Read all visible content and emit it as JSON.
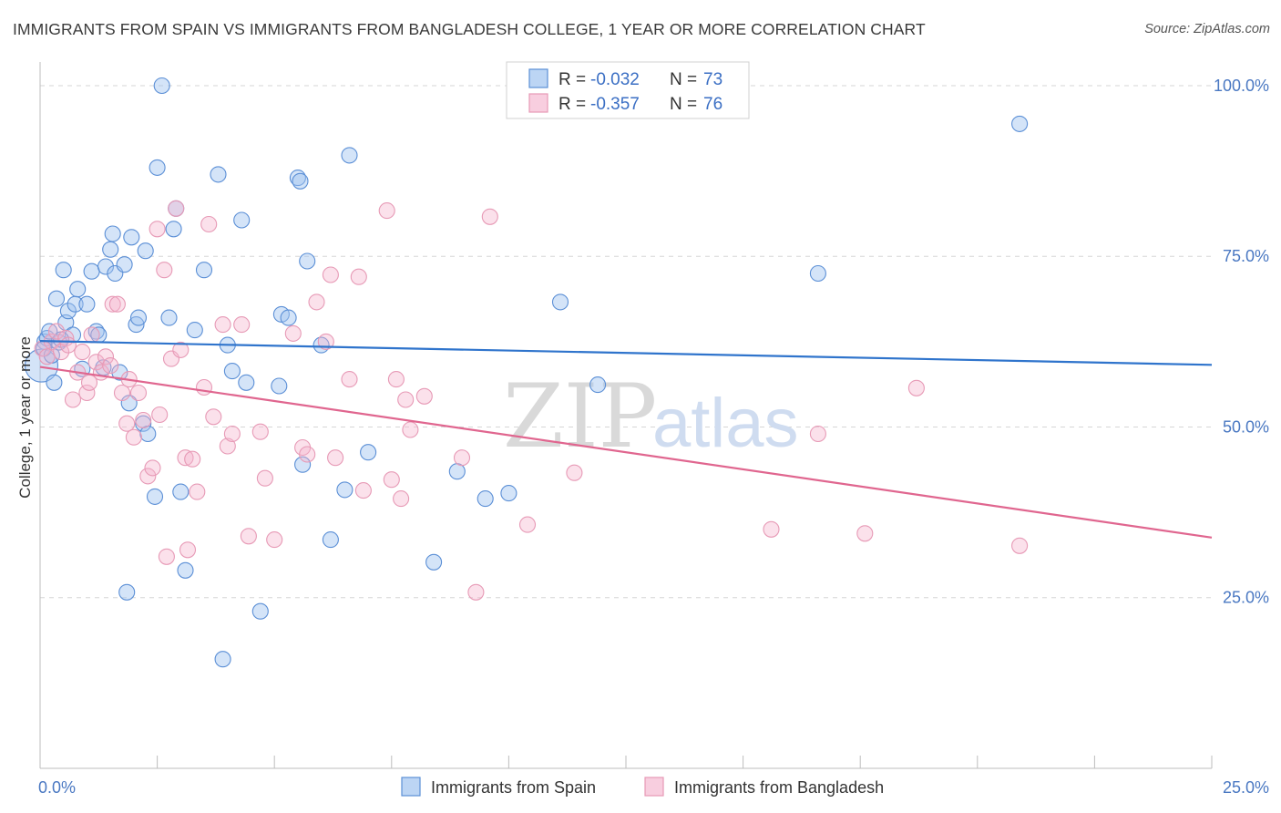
{
  "title": "IMMIGRANTS FROM SPAIN VS IMMIGRANTS FROM BANGLADESH COLLEGE, 1 YEAR OR MORE CORRELATION CHART",
  "source": "Source: ZipAtlas.com",
  "watermark": {
    "zip": "ZIP",
    "atlas": "atlas"
  },
  "colors": {
    "spain": "#5b8fd6",
    "spain_fill": "rgba(160,195,240,0.45)",
    "spain_line": "#2f74cc",
    "bangladesh": "#e79ab6",
    "bangladesh_fill": "rgba(245,180,205,0.40)",
    "bangladesh_line": "#e0668f",
    "tick_text": "#4a78c2"
  },
  "legend": {
    "rows": [
      {
        "r_label": "R =",
        "r_value": "-0.032",
        "n_label": "N =",
        "n_value": "73"
      },
      {
        "r_label": "R =",
        "r_value": "-0.357",
        "n_label": "N =",
        "n_value": "76"
      }
    ]
  },
  "chart_data": {
    "type": "scatter",
    "title": "IMMIGRANTS FROM SPAIN VS IMMIGRANTS FROM BANGLADESH COLLEGE, 1 YEAR OR MORE CORRELATION CHART",
    "xlabel": "",
    "ylabel": "College, 1 year or more",
    "xlim": [
      0,
      25
    ],
    "ylim": [
      0,
      102
    ],
    "x_tick_labels": [
      "0.0%",
      "25.0%"
    ],
    "y_ticks": [
      25,
      50,
      75,
      100
    ],
    "y_tick_labels": [
      "25.0%",
      "50.0%",
      "75.0%",
      "100.0%"
    ],
    "grid": "horizontal dashed",
    "legend_position": "top-center",
    "series": [
      {
        "name": "Immigrants from Spain",
        "r": -0.032,
        "n": 73,
        "trend": {
          "x0": 0,
          "y0": 62.6,
          "x1": 25,
          "y1": 59.1
        },
        "points": [
          [
            0.03,
            59.0
          ],
          [
            0.1,
            62.5
          ],
          [
            0.15,
            63.0
          ],
          [
            0.2,
            64.0
          ],
          [
            0.3,
            56.5
          ],
          [
            0.35,
            68.8
          ],
          [
            0.4,
            62.4
          ],
          [
            0.5,
            73.0
          ],
          [
            0.55,
            65.3
          ],
          [
            0.6,
            67.0
          ],
          [
            0.7,
            63.5
          ],
          [
            0.75,
            68.0
          ],
          [
            0.8,
            70.2
          ],
          [
            0.9,
            58.5
          ],
          [
            1.0,
            68.0
          ],
          [
            1.1,
            72.8
          ],
          [
            1.2,
            64.0
          ],
          [
            1.25,
            63.5
          ],
          [
            1.4,
            73.5
          ],
          [
            1.5,
            76.0
          ],
          [
            1.55,
            78.3
          ],
          [
            1.6,
            72.5
          ],
          [
            1.7,
            58.0
          ],
          [
            1.8,
            73.8
          ],
          [
            1.85,
            25.8
          ],
          [
            1.9,
            53.5
          ],
          [
            1.95,
            77.8
          ],
          [
            2.05,
            65.0
          ],
          [
            2.1,
            66.0
          ],
          [
            2.2,
            50.5
          ],
          [
            2.25,
            75.8
          ],
          [
            2.3,
            49.0
          ],
          [
            2.45,
            39.8
          ],
          [
            2.5,
            88.0
          ],
          [
            2.6,
            100.0
          ],
          [
            2.75,
            66.0
          ],
          [
            2.85,
            79.0
          ],
          [
            2.9,
            82.0
          ],
          [
            3.0,
            40.5
          ],
          [
            3.1,
            29.0
          ],
          [
            3.3,
            64.2
          ],
          [
            3.5,
            73.0
          ],
          [
            3.8,
            87.0
          ],
          [
            3.9,
            16.0
          ],
          [
            4.1,
            58.2
          ],
          [
            4.3,
            80.3
          ],
          [
            4.4,
            56.5
          ],
          [
            4.7,
            23.0
          ],
          [
            5.1,
            56.0
          ],
          [
            5.15,
            66.5
          ],
          [
            5.3,
            66.0
          ],
          [
            5.5,
            86.5
          ],
          [
            5.55,
            86.0
          ],
          [
            5.6,
            44.5
          ],
          [
            5.7,
            74.3
          ],
          [
            6.0,
            62.0
          ],
          [
            6.2,
            33.5
          ],
          [
            6.5,
            40.8
          ],
          [
            6.6,
            89.8
          ],
          [
            7.0,
            46.3
          ],
          [
            8.4,
            30.2
          ],
          [
            8.9,
            43.5
          ],
          [
            9.5,
            39.5
          ],
          [
            10.0,
            40.3
          ],
          [
            11.1,
            68.3
          ],
          [
            11.9,
            56.2
          ],
          [
            16.6,
            72.5
          ],
          [
            20.9,
            94.4
          ],
          [
            0.08,
            61.5
          ],
          [
            0.25,
            60.5
          ],
          [
            0.45,
            62.8
          ],
          [
            1.35,
            58.7
          ],
          [
            4.0,
            62.0
          ]
        ]
      },
      {
        "name": "Immigrants from Bangladesh",
        "r": -0.357,
        "n": 76,
        "trend": {
          "x0": 0,
          "y0": 58.8,
          "x1": 25,
          "y1": 33.8
        },
        "points": [
          [
            0.05,
            61.5
          ],
          [
            0.15,
            60.3
          ],
          [
            0.25,
            62.5
          ],
          [
            0.35,
            64.0
          ],
          [
            0.45,
            61.0
          ],
          [
            0.55,
            63.0
          ],
          [
            0.6,
            62.0
          ],
          [
            0.7,
            54.0
          ],
          [
            0.8,
            58.0
          ],
          [
            0.9,
            61.0
          ],
          [
            1.0,
            55.0
          ],
          [
            1.05,
            56.5
          ],
          [
            1.1,
            63.5
          ],
          [
            1.2,
            59.5
          ],
          [
            1.3,
            58.0
          ],
          [
            1.4,
            60.3
          ],
          [
            1.5,
            59.0
          ],
          [
            1.55,
            68.0
          ],
          [
            1.65,
            68.0
          ],
          [
            1.75,
            55.0
          ],
          [
            1.85,
            50.5
          ],
          [
            1.9,
            57.0
          ],
          [
            2.0,
            48.5
          ],
          [
            2.1,
            55.0
          ],
          [
            2.2,
            51.0
          ],
          [
            2.3,
            42.8
          ],
          [
            2.4,
            44.0
          ],
          [
            2.5,
            79.0
          ],
          [
            2.55,
            51.8
          ],
          [
            2.65,
            73.0
          ],
          [
            2.7,
            31.0
          ],
          [
            2.8,
            60.0
          ],
          [
            2.9,
            82.0
          ],
          [
            3.0,
            61.3
          ],
          [
            3.1,
            45.5
          ],
          [
            3.15,
            32.0
          ],
          [
            3.25,
            45.3
          ],
          [
            3.35,
            40.5
          ],
          [
            3.5,
            55.8
          ],
          [
            3.6,
            79.7
          ],
          [
            3.7,
            51.5
          ],
          [
            3.9,
            65.0
          ],
          [
            4.0,
            47.2
          ],
          [
            4.1,
            49.0
          ],
          [
            4.3,
            65.0
          ],
          [
            4.45,
            34.0
          ],
          [
            4.7,
            49.3
          ],
          [
            4.8,
            42.5
          ],
          [
            5.0,
            33.5
          ],
          [
            5.4,
            63.7
          ],
          [
            5.6,
            47.0
          ],
          [
            5.7,
            46.0
          ],
          [
            5.9,
            68.3
          ],
          [
            6.1,
            62.5
          ],
          [
            6.2,
            72.3
          ],
          [
            6.3,
            45.5
          ],
          [
            6.6,
            57.0
          ],
          [
            6.8,
            72.0
          ],
          [
            6.9,
            40.7
          ],
          [
            7.4,
            81.7
          ],
          [
            7.5,
            42.3
          ],
          [
            7.6,
            57.0
          ],
          [
            7.7,
            39.5
          ],
          [
            7.8,
            54.0
          ],
          [
            7.9,
            49.6
          ],
          [
            8.2,
            54.5
          ],
          [
            9.0,
            45.5
          ],
          [
            9.6,
            80.8
          ],
          [
            10.4,
            35.7
          ],
          [
            11.4,
            43.3
          ],
          [
            9.3,
            25.8
          ],
          [
            15.6,
            35.0
          ],
          [
            16.6,
            49.0
          ],
          [
            17.6,
            34.4
          ],
          [
            18.7,
            55.7
          ],
          [
            20.9,
            32.6
          ]
        ]
      }
    ]
  },
  "bottom_legend": {
    "items": [
      {
        "label": "Immigrants from Spain"
      },
      {
        "label": "Immigrants from Bangladesh"
      }
    ]
  }
}
